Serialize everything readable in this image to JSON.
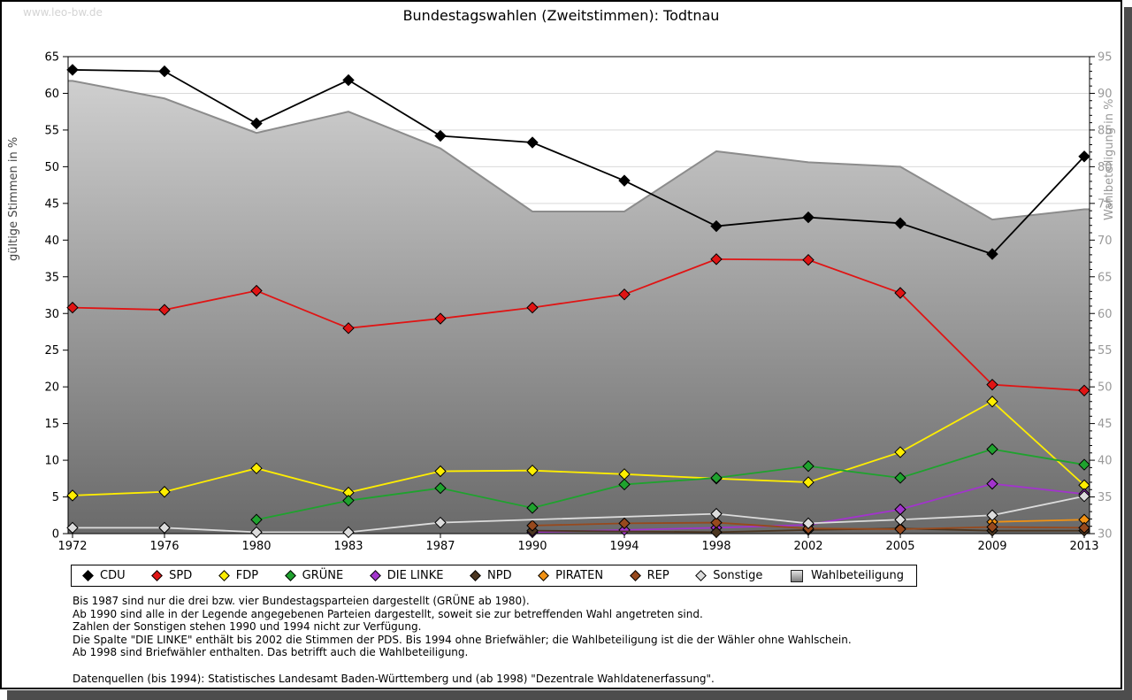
{
  "watermark": "www.leo-bw.de",
  "title": "Bundestagswahlen (Zweitstimmen): Todtnau",
  "chart_data": {
    "type": "line",
    "title": "Bundestagswahlen (Zweitstimmen): Todtnau",
    "x_categories": [
      "1972",
      "1976",
      "1980",
      "1983",
      "1987",
      "1990",
      "1994",
      "1998",
      "2002",
      "2005",
      "2009",
      "2013"
    ],
    "left_axis": {
      "label": "gültige Stimmen in %",
      "min": 0,
      "max": 65,
      "tick_step": 5
    },
    "right_axis": {
      "label": "Wahlbeteiligung in %",
      "min": 30,
      "max": 95,
      "tick_step": 5,
      "minor_step": 1
    },
    "grid": "horizontal",
    "legend_position": "bottom",
    "series": [
      {
        "name": "CDU",
        "color": "#000000",
        "axis": "left",
        "kind": "line",
        "values": [
          63.2,
          63.0,
          55.9,
          61.8,
          54.2,
          53.3,
          48.1,
          41.9,
          43.1,
          42.3,
          38.1,
          51.4
        ]
      },
      {
        "name": "SPD",
        "color": "#e01414",
        "axis": "left",
        "kind": "line",
        "values": [
          30.8,
          30.5,
          33.1,
          28.0,
          29.3,
          30.8,
          32.6,
          37.4,
          37.3,
          32.8,
          20.3,
          19.5
        ]
      },
      {
        "name": "FDP",
        "color": "#ffee00",
        "axis": "left",
        "kind": "line",
        "values": [
          5.2,
          5.7,
          8.9,
          5.6,
          8.5,
          8.6,
          8.1,
          7.5,
          7.0,
          11.1,
          18.0,
          6.6
        ]
      },
      {
        "name": "GRÜNE",
        "color": "#1fa22e",
        "axis": "left",
        "kind": "line",
        "values": [
          null,
          null,
          1.9,
          4.5,
          6.2,
          3.5,
          6.7,
          7.6,
          9.2,
          7.6,
          11.5,
          9.4
        ]
      },
      {
        "name": "DIE LINKE",
        "color": "#a234cc",
        "axis": "left",
        "kind": "line",
        "values": [
          null,
          null,
          null,
          null,
          null,
          0.2,
          0.5,
          0.8,
          1.2,
          3.3,
          6.8,
          5.4
        ]
      },
      {
        "name": "NPD",
        "color": "#4b3621",
        "axis": "left",
        "kind": "line",
        "values": [
          null,
          null,
          null,
          null,
          null,
          0.4,
          null,
          0.2,
          0.5,
          0.7,
          0.4,
          0.4
        ]
      },
      {
        "name": "PIRATEN",
        "color": "#f29213",
        "axis": "left",
        "kind": "line",
        "values": [
          null,
          null,
          null,
          null,
          null,
          null,
          null,
          null,
          null,
          null,
          1.6,
          1.9
        ]
      },
      {
        "name": "REP",
        "color": "#97491d",
        "axis": "left",
        "kind": "line",
        "values": [
          null,
          null,
          null,
          null,
          null,
          1.1,
          1.4,
          1.5,
          0.7,
          0.6,
          0.9,
          0.8
        ]
      },
      {
        "name": "Sonstige",
        "color": "#dcdcdc",
        "axis": "left",
        "kind": "line",
        "values": [
          0.8,
          0.8,
          0.2,
          0.2,
          1.5,
          null,
          null,
          2.7,
          1.4,
          1.9,
          2.5,
          5.1
        ]
      },
      {
        "name": "Wahlbeteiligung",
        "color": "#8c8c8c",
        "axis": "right",
        "kind": "area",
        "values": [
          91.7,
          89.3,
          84.6,
          87.5,
          82.5,
          73.9,
          73.9,
          82.1,
          80.6,
          80.0,
          72.8,
          74.2
        ]
      }
    ]
  },
  "footnotes": {
    "lines": [
      "Bis 1987 sind nur die drei bzw. vier Bundestagsparteien dargestellt (GRÜNE ab 1980).",
      "Ab 1990 sind alle in der Legende angegebenen Parteien dargestellt, soweit sie zur betreffenden Wahl angetreten sind.",
      "Zahlen der Sonstigen stehen 1990 und 1994 nicht zur Verfügung.",
      "Die Spalte \"DIE LINKE\" enthält bis 2002 die Stimmen der PDS. Bis 1994 ohne Briefwähler; die Wahlbeteiligung ist die der Wähler ohne Wahlschein.",
      "Ab 1998 sind Briefwähler enthalten. Das betrifft auch die Wahlbeteiligung."
    ],
    "datasource": "Datenquellen (bis 1994): Statistisches Landesamt Baden-Württemberg und (ab 1998) \"Dezentrale Wahldatenerfassung\"."
  }
}
